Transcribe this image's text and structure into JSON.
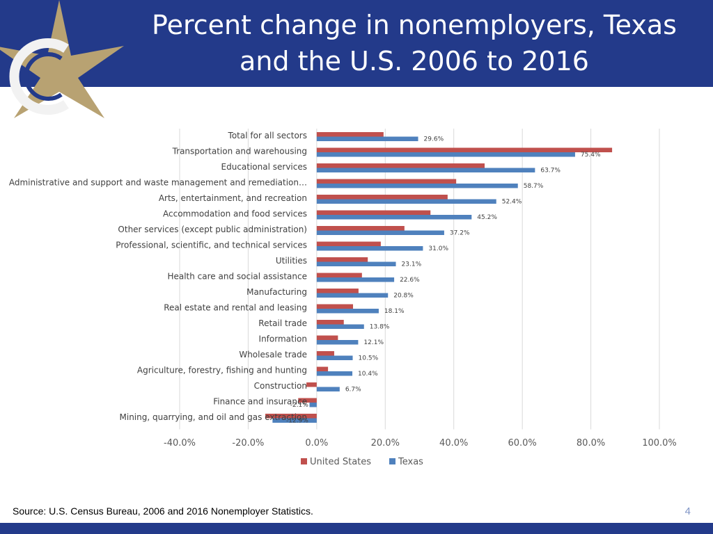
{
  "slide": {
    "title": "Percent change in nonemployers, Texas and the U.S. 2006 to 2016",
    "source": "Source: U.S. Census Bureau, 2006 and 2016 Nonemployer Statistics.",
    "page_number": "4"
  },
  "colors": {
    "header_bg": "#233a8a",
    "united_states": "#c0504d",
    "texas": "#4f81bd",
    "star": "#b8a272",
    "logo_ring": "#f2f2f2"
  },
  "icons": {
    "logo": "star-logo-icon"
  },
  "chart_data": {
    "type": "bar",
    "orientation": "horizontal",
    "categories": [
      "Total for all sectors",
      "Transportation and warehousing",
      "Educational services",
      "Administrative and support and waste management and remediation…",
      "Arts, entertainment, and recreation",
      "Accommodation and food services",
      "Other services (except public administration)",
      "Professional, scientific, and technical services",
      "Utilities",
      "Health care and social assistance",
      "Manufacturing",
      "Real estate and rental and leasing",
      "Retail trade",
      "Information",
      "Wholesale trade",
      "Agriculture, forestry, fishing and hunting",
      "Construction",
      "Finance and insurance",
      "Mining, quarrying, and oil and gas extraction"
    ],
    "series": [
      {
        "name": "United States",
        "values": [
          19.5,
          86.2,
          49.0,
          40.7,
          38.2,
          33.2,
          25.6,
          18.7,
          14.9,
          13.2,
          12.2,
          10.6,
          7.9,
          6.2,
          5.1,
          3.3,
          -3.0,
          -5.4,
          -15.0
        ]
      },
      {
        "name": "Texas",
        "values": [
          29.6,
          75.4,
          63.7,
          58.7,
          52.4,
          45.2,
          37.2,
          31.0,
          23.1,
          22.6,
          20.8,
          18.1,
          13.8,
          12.1,
          10.5,
          10.4,
          6.7,
          -2.1,
          -12.9
        ],
        "data_labels": [
          "29.6%",
          "75.4%",
          "63.7%",
          "58.7%",
          "52.4%",
          "45.2%",
          "37.2%",
          "31.0%",
          "23.1%",
          "22.6%",
          "20.8%",
          "18.1%",
          "13.8%",
          "12.1%",
          "10.5%",
          "10.4%",
          "6.7%",
          "-2.1%",
          "-12.9%"
        ]
      }
    ],
    "xlim": [
      -40,
      100
    ],
    "x_ticks": [
      -40,
      -20,
      0,
      20,
      40,
      60,
      80,
      100
    ],
    "x_tick_labels": [
      "-40.0%",
      "-20.0%",
      "0.0%",
      "20.0%",
      "40.0%",
      "60.0%",
      "80.0%",
      "100.0%"
    ],
    "grid": true,
    "legend": "bottom",
    "legend_entries": [
      "United States",
      "Texas"
    ]
  }
}
